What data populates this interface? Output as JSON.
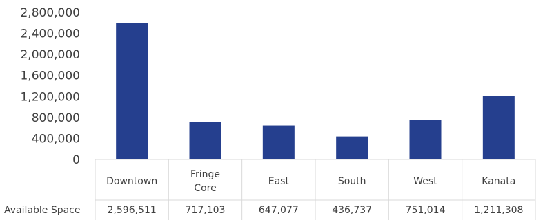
{
  "chart_data": {
    "type": "bar",
    "categories": [
      "Downtown",
      "Fringe Core",
      "East",
      "South",
      "West",
      "Kanata"
    ],
    "category_lines": [
      [
        "Downtown"
      ],
      [
        "Fringe",
        "Core"
      ],
      [
        "East"
      ],
      [
        "South"
      ],
      [
        "West"
      ],
      [
        "Kanata"
      ]
    ],
    "series": [
      {
        "name": "Available Space",
        "values": [
          2596511,
          717103,
          647077,
          436737,
          751014,
          1211308
        ]
      }
    ],
    "table_values": [
      "2,596,511",
      "717,103",
      "647,077",
      "436,737",
      "751,014",
      "1,211,308"
    ],
    "yticks": [
      "0",
      "400,000",
      "800,000",
      "1,200,000",
      "1,600,000",
      "2,000,000",
      "2,400,000",
      "2,800,000"
    ],
    "ylim": [
      0,
      2800000
    ],
    "bar_color": "#253F8E",
    "grid_color": "#D9D9D9",
    "legend": "data table below chart",
    "grid": false
  }
}
